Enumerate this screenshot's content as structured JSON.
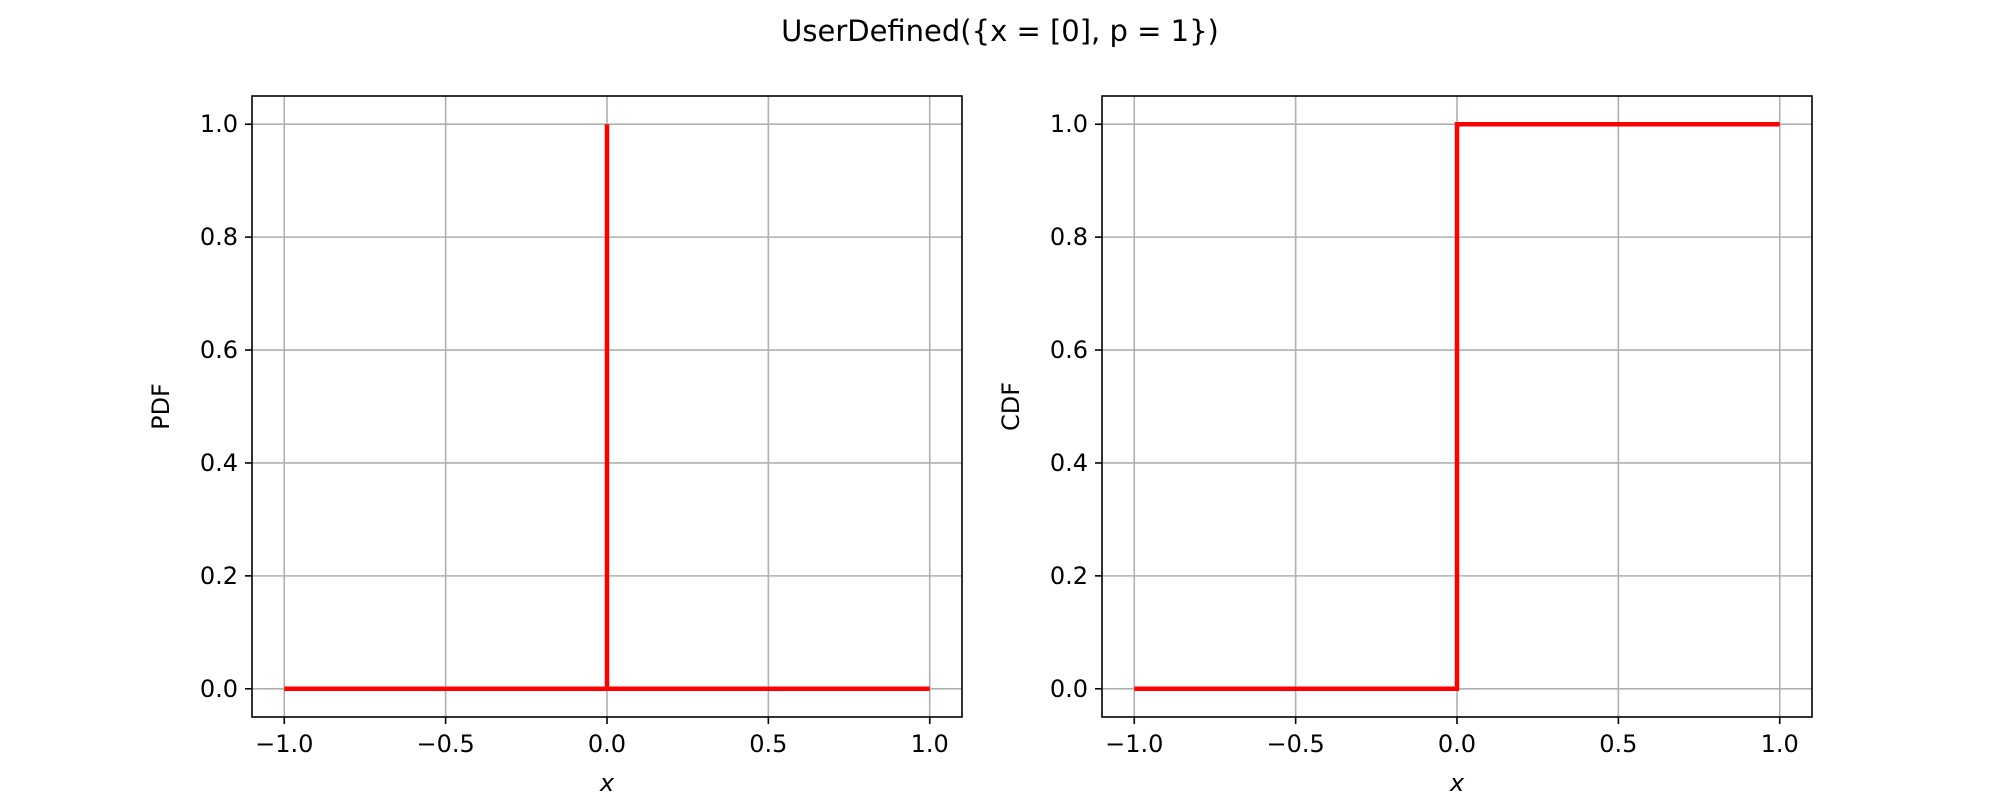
{
  "title": "UserDefined({x = [0], p = 1})",
  "chart_data": [
    {
      "type": "line",
      "title": "",
      "xlabel": "x",
      "ylabel": "PDF",
      "xlim": [
        -1.1,
        1.1
      ],
      "ylim": [
        -0.05,
        1.05
      ],
      "xticks": [
        -1.0,
        -0.5,
        0.0,
        0.5,
        1.0
      ],
      "xtick_labels": [
        "−1.0",
        "−0.5",
        "0.0",
        "0.5",
        "1.0"
      ],
      "yticks": [
        0.0,
        0.2,
        0.4,
        0.6,
        0.8,
        1.0
      ],
      "ytick_labels": [
        "0.0",
        "0.2",
        "0.4",
        "0.6",
        "0.8",
        "1.0"
      ],
      "grid": true,
      "series": [
        {
          "color": "#ff0000",
          "x": [
            -1.0,
            0.0,
            0.0,
            0.0,
            1.0
          ],
          "y": [
            0.0,
            0.0,
            1.0,
            0.0,
            0.0
          ]
        }
      ]
    },
    {
      "type": "line",
      "title": "",
      "xlabel": "x",
      "ylabel": "CDF",
      "xlim": [
        -1.1,
        1.1
      ],
      "ylim": [
        -0.05,
        1.05
      ],
      "xticks": [
        -1.0,
        -0.5,
        0.0,
        0.5,
        1.0
      ],
      "xtick_labels": [
        "−1.0",
        "−0.5",
        "0.0",
        "0.5",
        "1.0"
      ],
      "yticks": [
        0.0,
        0.2,
        0.4,
        0.6,
        0.8,
        1.0
      ],
      "ytick_labels": [
        "0.0",
        "0.2",
        "0.4",
        "0.6",
        "0.8",
        "1.0"
      ],
      "grid": true,
      "series": [
        {
          "color": "#ff0000",
          "x": [
            -1.0,
            0.0,
            0.0,
            1.0
          ],
          "y": [
            0.0,
            0.0,
            1.0,
            1.0
          ]
        }
      ]
    }
  ]
}
